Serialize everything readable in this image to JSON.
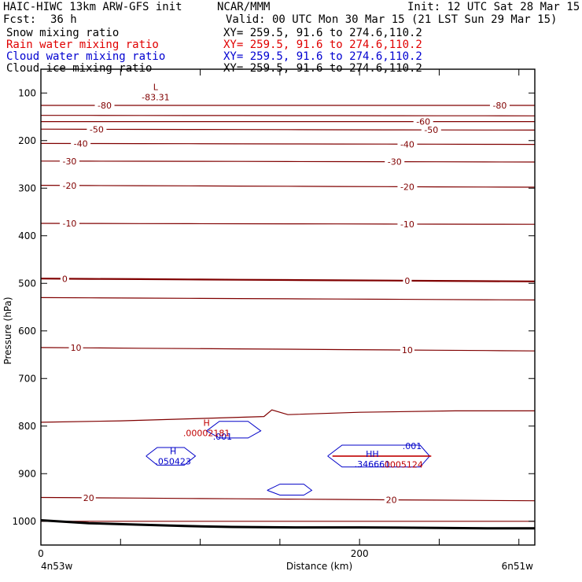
{
  "header": {
    "model": "HAIC-HIWC 13km ARW-GFS init",
    "org": "NCAR/MMM",
    "init": "Init: 12 UTC Sat 28 Mar 15",
    "fcst_label": "Fcst:",
    "fcst_value": "36 h",
    "valid": "Valid: 00 UTC Mon 30 Mar 15 (21 LST Sun 29 Mar 15)",
    "fields": [
      {
        "name": "Snow mixing ratio",
        "range": "XY= 259.5, 91.6 to 274.6,110.2",
        "color": "#000000"
      },
      {
        "name": "Rain water mixing ratio",
        "range": "XY= 259.5, 91.6 to 274.6,110.2",
        "color": "#e00000"
      },
      {
        "name": "Cloud water mixing ratio",
        "range": "XY= 259.5, 91.6 to 274.6,110.2",
        "color": "#0000d0"
      },
      {
        "name": "Cloud ice mixing ratio",
        "range": "XY= 259.5, 91.6 to 274.6,110.2",
        "color": "#000000"
      }
    ]
  },
  "chart_data": {
    "type": "line",
    "xlabel": "Distance (km)",
    "ylabel": "Pressure (hPa)",
    "xlim": [
      0,
      310
    ],
    "ylim": [
      1050,
      50
    ],
    "x_ticks": [
      0,
      200
    ],
    "y_ticks": [
      100,
      200,
      300,
      400,
      500,
      600,
      700,
      800,
      900,
      1000
    ],
    "x_start_label": "4n53w",
    "x_end_label": "6n51w",
    "colors": {
      "temperature": "#800000",
      "rain": "#c00000",
      "cloud_water": "#0000c8",
      "terrain": "#000000"
    },
    "temperature_contours": [
      {
        "value": -80,
        "label": "-80",
        "p_left": 126,
        "p_right": 126,
        "label_x": [
          40,
          288
        ]
      },
      {
        "value": -70,
        "label": "",
        "p_left": 147,
        "p_right": 148,
        "label_x": []
      },
      {
        "value": -60,
        "label": "-60",
        "p_left": 160,
        "p_right": 160,
        "label_x": [
          240
        ]
      },
      {
        "value": -50,
        "label": "-50",
        "p_left": 176,
        "p_right": 178,
        "label_x": [
          35,
          245
        ]
      },
      {
        "value": -40,
        "label": "-40",
        "p_left": 206,
        "p_right": 208,
        "label_x": [
          25,
          230
        ]
      },
      {
        "value": -30,
        "label": "-30",
        "p_left": 243,
        "p_right": 245,
        "label_x": [
          18,
          222
        ]
      },
      {
        "value": -20,
        "label": "-20",
        "p_left": 294,
        "p_right": 298,
        "label_x": [
          18,
          230
        ]
      },
      {
        "value": -10,
        "label": "-10",
        "p_left": 374,
        "p_right": 376,
        "label_x": [
          18,
          230
        ]
      },
      {
        "value": 0,
        "label": "0",
        "p_left": 490,
        "p_right": 496,
        "label_x": [
          15,
          230
        ],
        "bold": true
      },
      {
        "value": 5,
        "label": "",
        "p_left": 530,
        "p_right": 535,
        "label_x": []
      },
      {
        "value": 10,
        "label": "10",
        "p_left": 635,
        "p_right": 642,
        "label_x": [
          22,
          230
        ]
      },
      {
        "value": 15,
        "label": "",
        "p_left": 792,
        "p_right": 768,
        "label_x": [],
        "bump": true
      },
      {
        "value": 20,
        "label": "20",
        "p_left": 950,
        "p_right": 957,
        "label_x": [
          30,
          220
        ]
      },
      {
        "value": 25,
        "label": "",
        "p_left": 1000,
        "p_right": 1000,
        "label_x": []
      }
    ],
    "extrema": [
      {
        "type": "L",
        "label": "L",
        "value": "-83.31",
        "x": 72,
        "p": 97,
        "color": "#800000"
      },
      {
        "type": "H",
        "label": "H",
        "value": ".00002181",
        "x": 104,
        "p": 803,
        "color": "#c00000"
      },
      {
        "type": "H",
        "label": "H",
        "value": ".050423",
        "x": 83,
        "p": 862,
        "color": "#0000c8"
      },
      {
        "type": "H",
        "label": "HH",
        "value": ".346661",
        "x": 208,
        "p": 868,
        "color": "#0000c8"
      },
      {
        "type": "H",
        "label": "",
        "value": ".0005124",
        "x": 220,
        "p": 869,
        "color": "#c00000"
      }
    ],
    "cloud_water_contours": [
      {
        "value": ".001",
        "label": ".001",
        "label_x": 114,
        "label_p": 822,
        "points": [
          [
            104,
            810
          ],
          [
            112,
            790
          ],
          [
            130,
            790
          ],
          [
            138,
            810
          ],
          [
            130,
            825
          ],
          [
            112,
            825
          ],
          [
            104,
            810
          ]
        ]
      },
      {
        "value": ".001",
        "label": "",
        "label_x": null,
        "label_p": null,
        "points": [
          [
            66,
            863
          ],
          [
            73,
            845
          ],
          [
            90,
            845
          ],
          [
            97,
            863
          ],
          [
            90,
            882
          ],
          [
            73,
            882
          ],
          [
            66,
            863
          ]
        ]
      },
      {
        "value": ".001",
        "label": ".001",
        "label_x": 233,
        "label_p": 842,
        "points": [
          [
            180,
            863
          ],
          [
            189,
            840
          ],
          [
            238,
            840
          ],
          [
            244,
            863
          ],
          [
            238,
            886
          ],
          [
            189,
            886
          ],
          [
            180,
            863
          ]
        ]
      },
      {
        "value": ".001",
        "label": "",
        "label_x": null,
        "label_p": null,
        "points": [
          [
            142,
            935
          ],
          [
            150,
            922
          ],
          [
            165,
            922
          ],
          [
            170,
            935
          ],
          [
            165,
            945
          ],
          [
            150,
            945
          ],
          [
            142,
            935
          ]
        ]
      }
    ],
    "rain_contours": [
      {
        "value": ".00001",
        "points": [
          [
            183,
            863
          ],
          [
            245,
            863
          ]
        ]
      }
    ],
    "terrain": [
      [
        0,
        998
      ],
      [
        30,
        1004
      ],
      [
        60,
        1007
      ],
      [
        90,
        1010
      ],
      [
        120,
        1012
      ],
      [
        160,
        1013
      ],
      [
        200,
        1013
      ],
      [
        250,
        1014
      ],
      [
        280,
        1015
      ],
      [
        310,
        1015
      ]
    ],
    "grid": false
  }
}
